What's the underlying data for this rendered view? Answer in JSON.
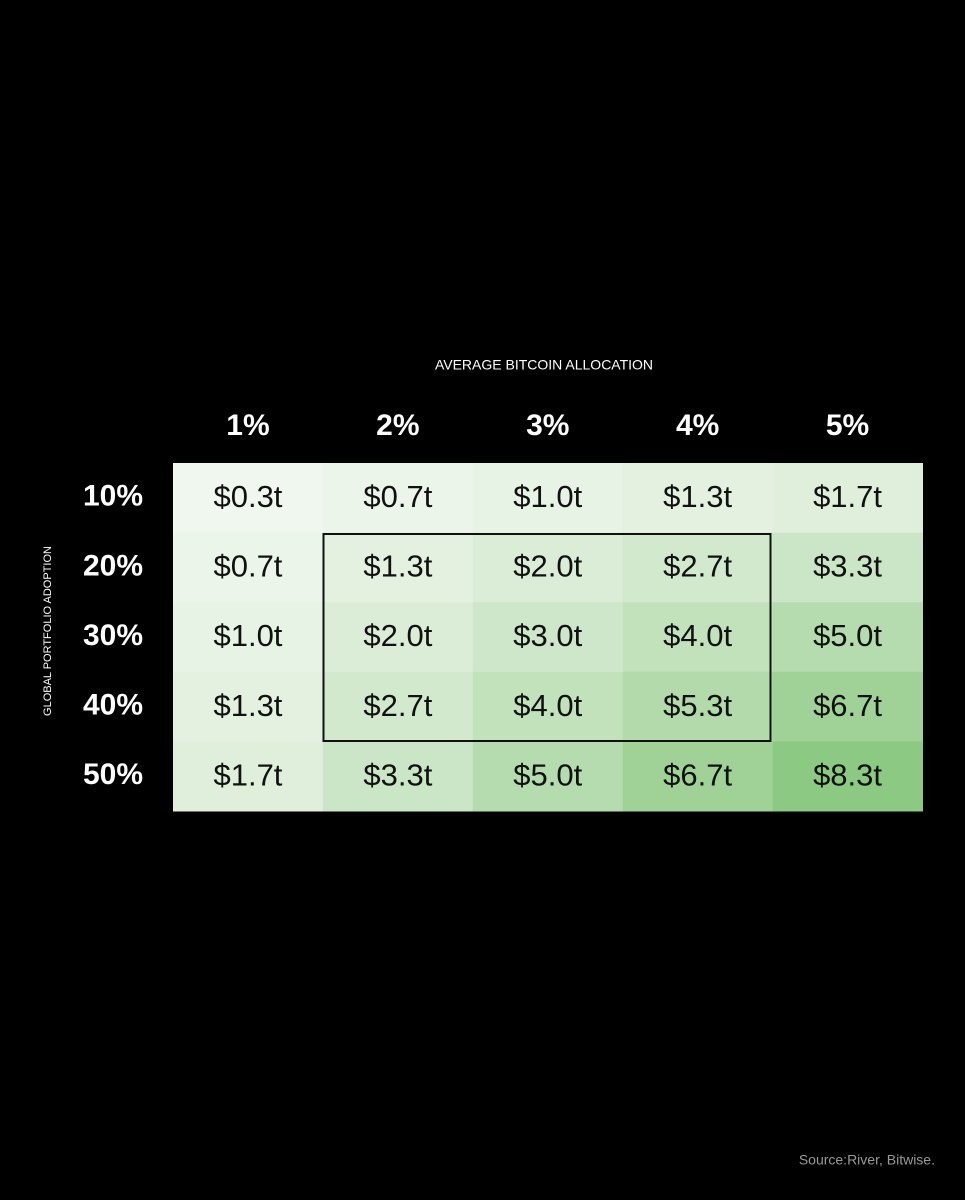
{
  "chart_data": {
    "type": "heatmap",
    "title": "AVERAGE BITCOIN ALLOCATION",
    "y_label": "GLOBAL PORTFOLIO ADOPTION",
    "source": "Source:River, Bitwise.",
    "x_categories": [
      "1%",
      "2%",
      "3%",
      "4%",
      "5%"
    ],
    "y_categories": [
      "10%",
      "20%",
      "30%",
      "40%",
      "50%"
    ],
    "values": [
      [
        0.3,
        0.7,
        1.0,
        1.3,
        1.7
      ],
      [
        0.7,
        1.3,
        2.0,
        2.7,
        3.3
      ],
      [
        1.0,
        2.0,
        3.0,
        4.0,
        5.0
      ],
      [
        1.3,
        2.7,
        4.0,
        5.3,
        6.7
      ],
      [
        1.7,
        3.3,
        5.0,
        6.7,
        8.3
      ]
    ],
    "value_labels": [
      [
        "$0.3t",
        "$0.7t",
        "$1.0t",
        "$1.3t",
        "$1.7t"
      ],
      [
        "$0.7t",
        "$1.3t",
        "$2.0t",
        "$2.7t",
        "$3.3t"
      ],
      [
        "$1.0t",
        "$2.0t",
        "$3.0t",
        "$4.0t",
        "$5.0t"
      ],
      [
        "$1.3t",
        "$2.7t",
        "$4.0t",
        "$5.3t",
        "$6.7t"
      ],
      [
        "$1.7t",
        "$3.3t",
        "$5.0t",
        "$6.7t",
        "$8.3t"
      ]
    ],
    "colors": [
      "#f0f7ee",
      "#8cc982"
    ]
  }
}
